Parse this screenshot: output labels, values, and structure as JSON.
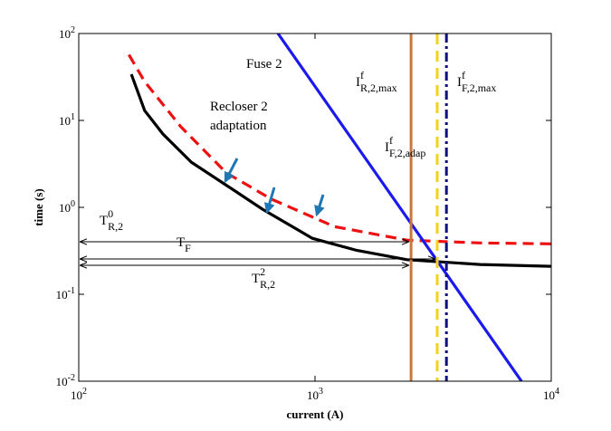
{
  "chart_data": {
    "type": "line",
    "xlabel": "current (A)",
    "ylabel": "time (s)",
    "xscale": "log",
    "yscale": "log",
    "xlim": [
      100,
      10000
    ],
    "ylim": [
      0.01,
      100
    ],
    "xticks": [
      {
        "value": 100,
        "label": "10^2"
      },
      {
        "value": 1000,
        "label": "10^3"
      },
      {
        "value": 10000,
        "label": "10^4"
      }
    ],
    "yticks": [
      {
        "value": 0.01,
        "label": "10^-2"
      },
      {
        "value": 0.1,
        "label": "10^-1"
      },
      {
        "value": 1,
        "label": "10^0"
      },
      {
        "value": 10,
        "label": "10^1"
      },
      {
        "value": 100,
        "label": "10^2"
      }
    ],
    "series": [
      {
        "color": "#000000",
        "dash": "solid",
        "x": [
          167,
          190,
          227,
          300,
          421,
          600,
          975,
          1500,
          2450,
          5000,
          10000
        ],
        "values": [
          34,
          13,
          7,
          3.3,
          1.8,
          0.95,
          0.44,
          0.32,
          0.25,
          0.22,
          0.21
        ]
      },
      {
        "color": "#ee1111",
        "dash": "dashed",
        "x": [
          163,
          190,
          270,
          421,
          655,
          1210,
          2450,
          5000,
          10000
        ],
        "values": [
          57,
          28,
          8.5,
          2.5,
          1.24,
          0.6,
          0.42,
          0.39,
          0.38
        ]
      },
      {
        "color": "#1a1aee",
        "dash": "solid",
        "x": [
          697,
          7480
        ],
        "values": [
          100,
          0.01
        ]
      }
    ],
    "vlines": [
      {
        "x": 2550,
        "color": "#c8783c",
        "dash": "solid"
      },
      {
        "x": 3290,
        "color": "#f2d21a",
        "dash": "dashed"
      },
      {
        "x": 3600,
        "color": "#10107a",
        "dash": "dashdot"
      }
    ],
    "annotations": [
      {
        "base": "Fuse 2"
      },
      {
        "base": "Recloser 2"
      },
      {
        "base": "adaptation"
      },
      {
        "base": "T",
        "sub": "R,2",
        "sup": "0"
      },
      {
        "base": "T",
        "sub": "F"
      },
      {
        "base": "T",
        "sub": "R,2",
        "sup": "2"
      },
      {
        "base": "I",
        "sub": "R,2,max",
        "sup": "f"
      },
      {
        "base": "I",
        "sub": "F,2,adap",
        "sup": "f"
      },
      {
        "base": "I",
        "sub": "F,2,max",
        "sup": "f"
      }
    ]
  }
}
